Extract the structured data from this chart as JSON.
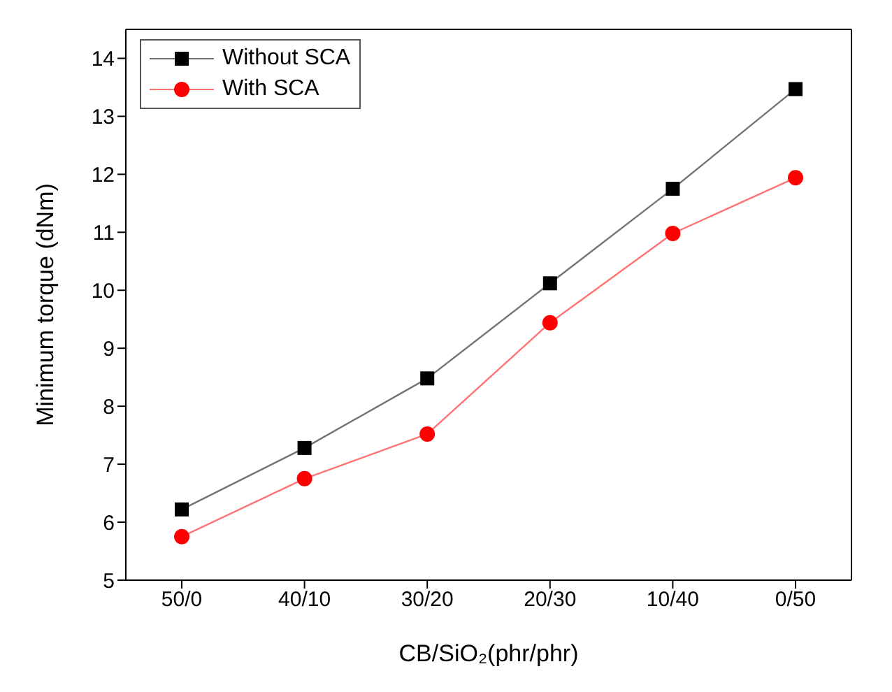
{
  "chart_data": {
    "type": "line",
    "xlabel": "CB/SiO₂(phr/phr)",
    "ylabel": "Minimum torque (dNm)",
    "categories": [
      "50/0",
      "40/10",
      "30/20",
      "20/30",
      "10/40",
      "0/50"
    ],
    "series": [
      {
        "name": "Without SCA",
        "color": "#000000",
        "marker": "square",
        "values": [
          6.22,
          7.28,
          8.48,
          10.12,
          11.75,
          13.47
        ]
      },
      {
        "name": "With SCA",
        "color": "#ff0000",
        "marker": "circle",
        "values": [
          5.75,
          6.75,
          7.52,
          9.44,
          10.98,
          11.94
        ]
      }
    ],
    "ylim": [
      5,
      14.5
    ],
    "yticks": [
      5,
      6,
      7,
      8,
      9,
      10,
      11,
      12,
      13,
      14
    ],
    "grid": false,
    "legend": "top left",
    "line_style": "solid"
  }
}
